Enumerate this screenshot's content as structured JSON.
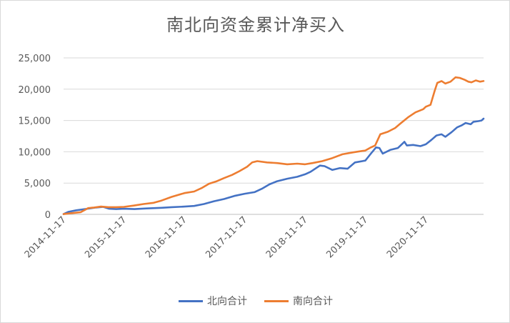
{
  "chart_data": {
    "type": "line",
    "title": "南北向资金累计净买入",
    "xlabel": "",
    "ylabel": "",
    "ylim": [
      0,
      25000
    ],
    "yticks": [
      "0",
      "5,000",
      "10,000",
      "15,000",
      "20,000",
      "25,000"
    ],
    "ytick_values": [
      0,
      5000,
      10000,
      15000,
      20000,
      25000
    ],
    "xlim": [
      "2014-11-17",
      "2021-11-01"
    ],
    "xticks": [
      "2014-11-17",
      "2015-11-17",
      "2016-11-17",
      "2017-11-17",
      "2018-11-17",
      "2019-11-17",
      "2020-11-17"
    ],
    "grid": "horizontal",
    "legend_position": "bottom",
    "series": [
      {
        "name": "北向合计",
        "color": "#4472c4",
        "points": [
          [
            "2014-11-17",
            50
          ],
          [
            "2014-12-15",
            400
          ],
          [
            "2015-02-01",
            650
          ],
          [
            "2015-04-10",
            900
          ],
          [
            "2015-06-01",
            1100
          ],
          [
            "2015-07-15",
            1200
          ],
          [
            "2015-08-20",
            900
          ],
          [
            "2015-10-01",
            850
          ],
          [
            "2015-11-17",
            900
          ],
          [
            "2016-01-20",
            850
          ],
          [
            "2016-04-01",
            950
          ],
          [
            "2016-07-01",
            1050
          ],
          [
            "2016-09-01",
            1150
          ],
          [
            "2016-11-17",
            1250
          ],
          [
            "2017-01-15",
            1350
          ],
          [
            "2017-03-15",
            1650
          ],
          [
            "2017-05-15",
            2100
          ],
          [
            "2017-07-15",
            2450
          ],
          [
            "2017-09-15",
            2950
          ],
          [
            "2017-11-17",
            3300
          ],
          [
            "2018-01-15",
            3550
          ],
          [
            "2018-03-01",
            4100
          ],
          [
            "2018-04-15",
            4800
          ],
          [
            "2018-06-01",
            5300
          ],
          [
            "2018-08-01",
            5700
          ],
          [
            "2018-10-01",
            6000
          ],
          [
            "2018-11-17",
            6400
          ],
          [
            "2018-12-20",
            6800
          ],
          [
            "2019-02-15",
            7800
          ],
          [
            "2019-03-15",
            7700
          ],
          [
            "2019-05-01",
            7100
          ],
          [
            "2019-06-15",
            7400
          ],
          [
            "2019-08-01",
            7300
          ],
          [
            "2019-09-15",
            8300
          ],
          [
            "2019-11-17",
            8600
          ],
          [
            "2019-12-20",
            9700
          ],
          [
            "2020-01-20",
            10700
          ],
          [
            "2020-02-10",
            10600
          ],
          [
            "2020-03-01",
            9700
          ],
          [
            "2020-04-15",
            10300
          ],
          [
            "2020-06-01",
            10600
          ],
          [
            "2020-07-10",
            11600
          ],
          [
            "2020-07-25",
            11000
          ],
          [
            "2020-09-01",
            11100
          ],
          [
            "2020-10-15",
            10900
          ],
          [
            "2020-11-17",
            11200
          ],
          [
            "2020-12-20",
            11900
          ],
          [
            "2021-01-20",
            12600
          ],
          [
            "2021-02-20",
            12800
          ],
          [
            "2021-03-15",
            12400
          ],
          [
            "2021-04-20",
            13100
          ],
          [
            "2021-05-25",
            13900
          ],
          [
            "2021-06-20",
            14200
          ],
          [
            "2021-07-15",
            14600
          ],
          [
            "2021-08-15",
            14400
          ],
          [
            "2021-09-01",
            14800
          ],
          [
            "2021-10-01",
            14900
          ],
          [
            "2021-10-20",
            15000
          ],
          [
            "2021-11-01",
            15300
          ]
        ]
      },
      {
        "name": "南向合计",
        "color": "#ed7d31",
        "points": [
          [
            "2014-11-17",
            50
          ],
          [
            "2014-12-20",
            150
          ],
          [
            "2015-03-01",
            350
          ],
          [
            "2015-04-15",
            1000
          ],
          [
            "2015-05-20",
            1100
          ],
          [
            "2015-07-01",
            1250
          ],
          [
            "2015-08-15",
            1150
          ],
          [
            "2015-10-01",
            1150
          ],
          [
            "2015-11-17",
            1200
          ],
          [
            "2016-01-15",
            1400
          ],
          [
            "2016-03-15",
            1650
          ],
          [
            "2016-05-15",
            1850
          ],
          [
            "2016-07-01",
            2200
          ],
          [
            "2016-09-01",
            2800
          ],
          [
            "2016-11-17",
            3400
          ],
          [
            "2017-01-15",
            3650
          ],
          [
            "2017-03-01",
            4200
          ],
          [
            "2017-04-15",
            4900
          ],
          [
            "2017-06-01",
            5300
          ],
          [
            "2017-07-15",
            5800
          ],
          [
            "2017-09-01",
            6300
          ],
          [
            "2017-10-15",
            6900
          ],
          [
            "2017-12-01",
            7600
          ],
          [
            "2018-01-01",
            8300
          ],
          [
            "2018-02-01",
            8500
          ],
          [
            "2018-04-01",
            8300
          ],
          [
            "2018-06-01",
            8200
          ],
          [
            "2018-08-01",
            8000
          ],
          [
            "2018-10-01",
            8100
          ],
          [
            "2018-11-17",
            8000
          ],
          [
            "2019-01-01",
            8200
          ],
          [
            "2019-03-01",
            8500
          ],
          [
            "2019-05-01",
            9000
          ],
          [
            "2019-07-01",
            9600
          ],
          [
            "2019-09-01",
            9900
          ],
          [
            "2019-11-17",
            10200
          ],
          [
            "2019-12-20",
            10700
          ],
          [
            "2020-01-15",
            11000
          ],
          [
            "2020-02-15",
            12800
          ],
          [
            "2020-04-01",
            13200
          ],
          [
            "2020-05-15",
            13800
          ],
          [
            "2020-06-15",
            14500
          ],
          [
            "2020-08-01",
            15500
          ],
          [
            "2020-09-15",
            16300
          ],
          [
            "2020-11-01",
            16800
          ],
          [
            "2020-11-17",
            17200
          ],
          [
            "2020-12-15",
            17500
          ],
          [
            "2021-01-10",
            19800
          ],
          [
            "2021-01-25",
            21000
          ],
          [
            "2021-02-20",
            21300
          ],
          [
            "2021-03-15",
            20900
          ],
          [
            "2021-04-15",
            21200
          ],
          [
            "2021-05-15",
            21900
          ],
          [
            "2021-06-10",
            21800
          ],
          [
            "2021-07-10",
            21500
          ],
          [
            "2021-08-01",
            21200
          ],
          [
            "2021-08-20",
            21100
          ],
          [
            "2021-09-15",
            21400
          ],
          [
            "2021-10-10",
            21200
          ],
          [
            "2021-11-01",
            21300
          ]
        ]
      }
    ]
  }
}
